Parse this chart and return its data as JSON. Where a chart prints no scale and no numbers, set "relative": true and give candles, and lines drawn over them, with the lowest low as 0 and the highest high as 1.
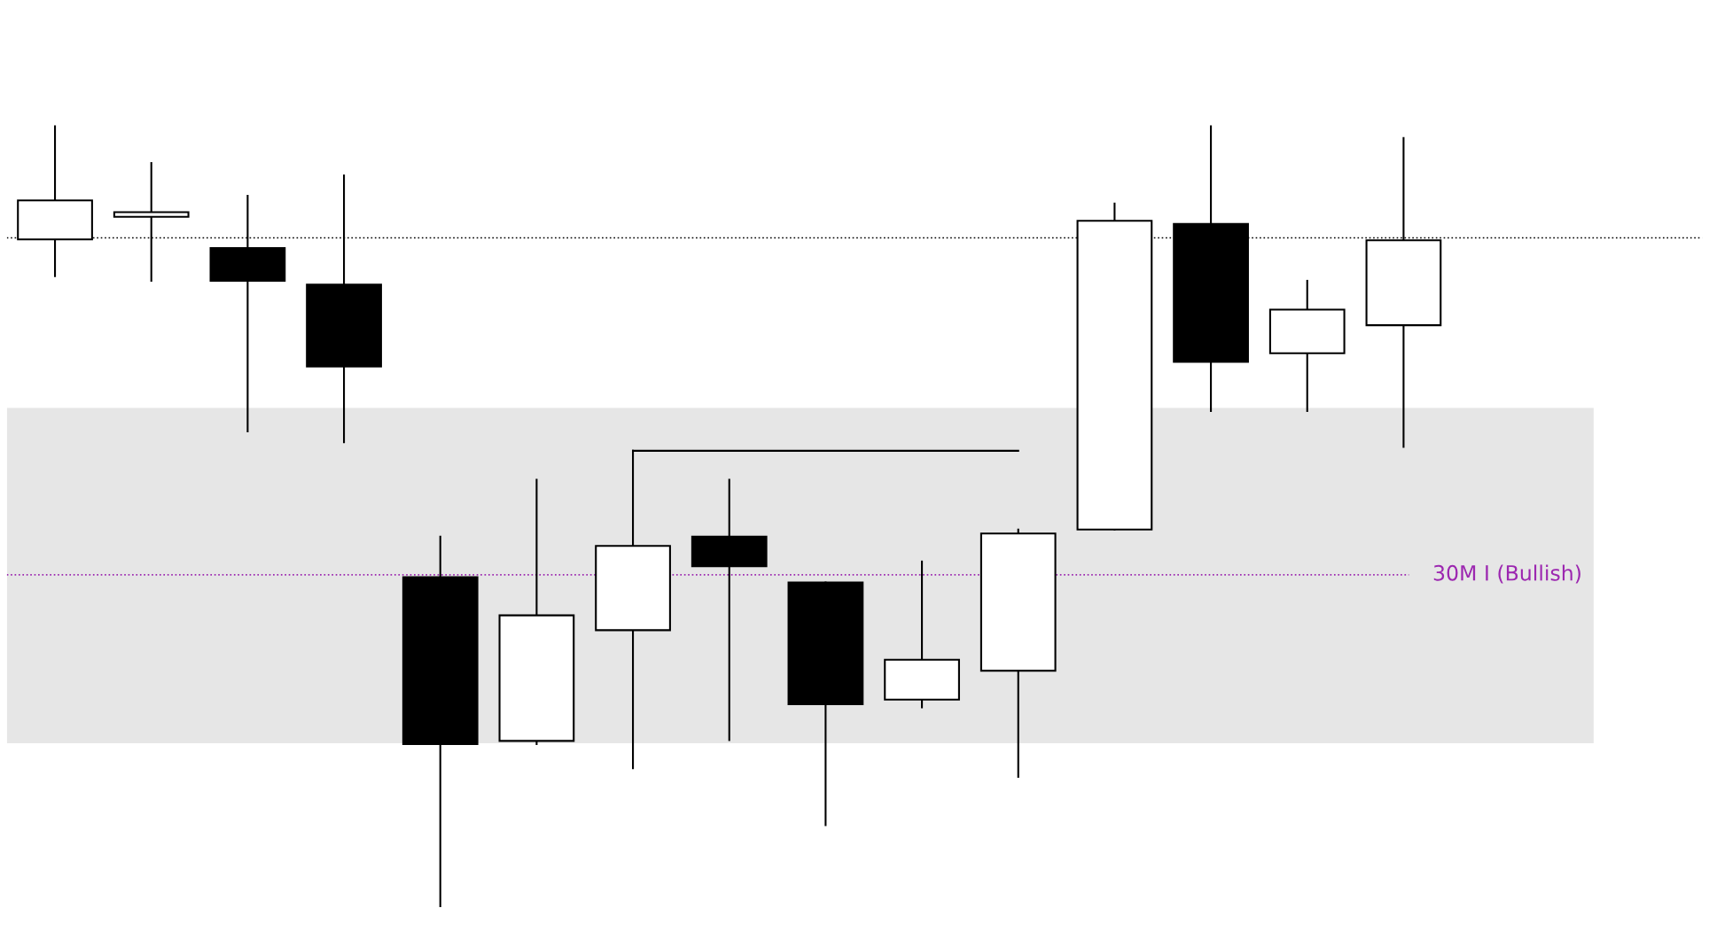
{
  "chart_data": {
    "type": "candlestick",
    "relative": true,
    "grid": false,
    "categories": [
      null,
      null,
      null,
      null,
      null,
      null,
      null,
      null,
      null,
      null,
      null,
      null,
      null,
      null,
      null
    ],
    "ohlc": [
      [
        0.855,
        1.0,
        0.808,
        0.905
      ],
      [
        0.884,
        0.953,
        0.802,
        0.89
      ],
      [
        0.844,
        0.911,
        0.609,
        0.802
      ],
      [
        0.797,
        0.937,
        0.595,
        0.692
      ],
      [
        0.422,
        0.474,
        0.0,
        0.208
      ],
      [
        0.212,
        0.547,
        0.208,
        0.373
      ],
      [
        0.354,
        0.584,
        0.177,
        0.462
      ],
      [
        0.474,
        0.547,
        0.213,
        0.436
      ],
      [
        0.415,
        0.415,
        0.104,
        0.259
      ],
      [
        0.265,
        0.442,
        0.255,
        0.316
      ],
      [
        0.302,
        0.483,
        0.166,
        0.478
      ],
      [
        0.483,
        0.901,
        0.483,
        0.879
      ],
      [
        0.875,
        1.0,
        0.635,
        0.698
      ],
      [
        0.709,
        0.802,
        0.635,
        0.765
      ],
      [
        0.745,
        0.985,
        0.589,
        0.854
      ]
    ],
    "series": [
      {
        "type": "line",
        "color": "#000000",
        "values": [
          null,
          null,
          null,
          null,
          null,
          null,
          0.584,
          0.584,
          0.584,
          0.584,
          0.584,
          null,
          null,
          null,
          null
        ]
      }
    ],
    "ref_lines": [
      {
        "axis": "y",
        "value": 0.857,
        "label": null,
        "color": "#000000",
        "line_style": "dotted"
      },
      {
        "axis": "y",
        "value": 0.425,
        "label": "30M I (Bullish)",
        "color": "#9c27b0",
        "line_style": "dotted"
      }
    ],
    "bands": [
      {
        "axis": "y",
        "from": 0.209,
        "to": 0.639,
        "label": null,
        "color": "#e6e6e6"
      }
    ]
  }
}
